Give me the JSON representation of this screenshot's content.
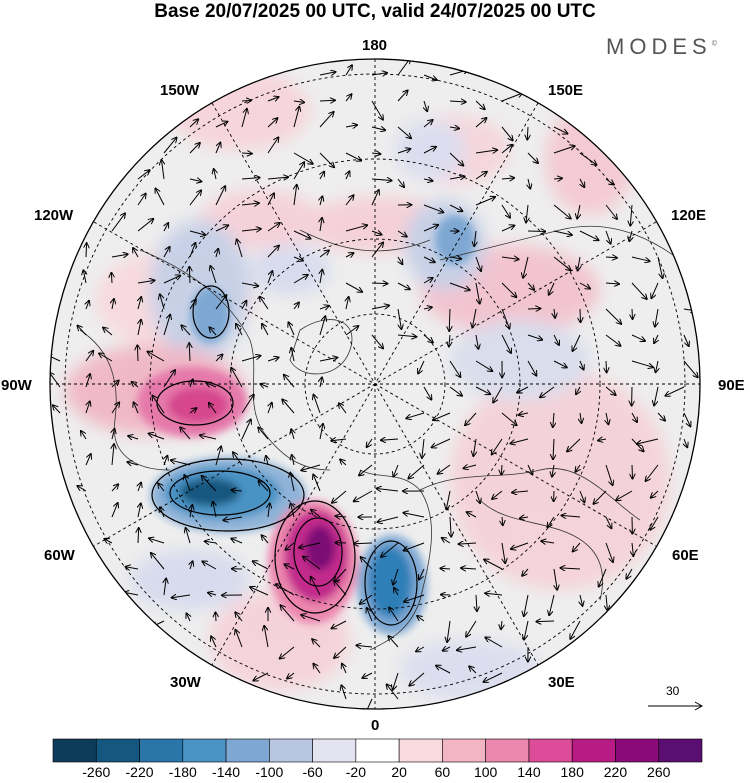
{
  "title": "Base 20/07/2025 00 UTC, valid 24/07/2025 00 UTC",
  "brand": "MODES",
  "brand_mark": "©",
  "map": {
    "projection": "north-polar-stereographic",
    "longitude_labels": {
      "top": "180",
      "top_right": "150E",
      "right_upper": "120E",
      "right": "90E",
      "right_lower": "60E",
      "bottom_right": "30E",
      "bottom": "0",
      "bottom_left": "30W",
      "left_lower": "60W",
      "left": "90W",
      "left_upper": "120W",
      "top_left": "150W"
    },
    "wind_reference_vector": "30",
    "anomaly_centers": [
      {
        "sign": "negative",
        "region": "north-atlantic-west",
        "color": "#2a6fa5"
      },
      {
        "sign": "positive",
        "region": "north-atlantic-central",
        "color": "#a2197e"
      },
      {
        "sign": "negative",
        "region": "northwest-europe",
        "color": "#2f7fb8"
      },
      {
        "sign": "positive",
        "region": "hudson-bay",
        "color": "#d6468e"
      }
    ]
  },
  "colorbar": {
    "colors": [
      "#0d3c5a",
      "#16577f",
      "#2a76a8",
      "#4a93c4",
      "#7ea8d3",
      "#b9c6e2",
      "#e4e4f1",
      "#ffffff",
      "#f9dadf",
      "#f2b5c3",
      "#ec87ae",
      "#dc4c98",
      "#b81b83",
      "#8b0a79",
      "#5a0e72"
    ],
    "ticks": [
      "-260",
      "-220",
      "-180",
      "-140",
      "-100",
      "-60",
      "-20",
      "20",
      "60",
      "100",
      "140",
      "180",
      "220",
      "260"
    ]
  }
}
